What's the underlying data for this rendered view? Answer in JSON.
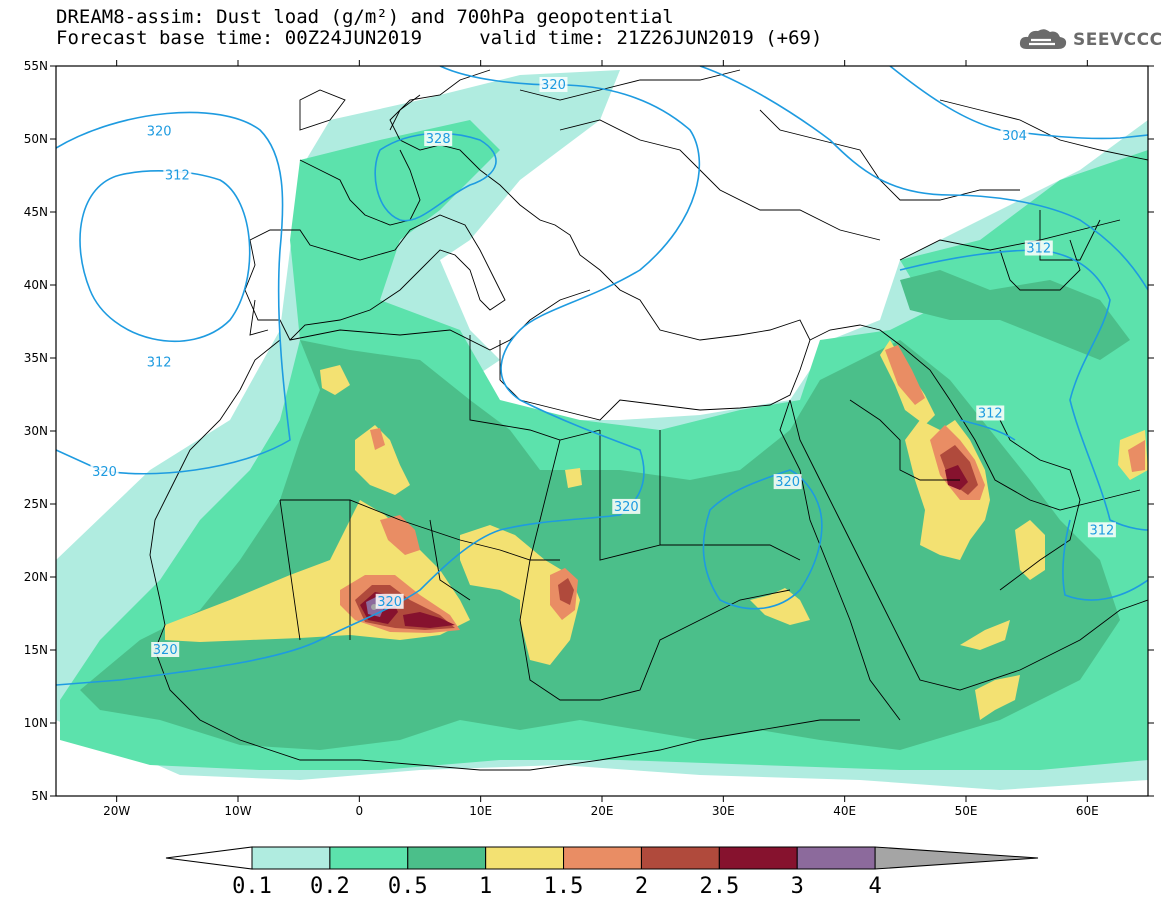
{
  "header": {
    "line1": "DREAM8-assim: Dust load (g/m²) and 700hPa geopotential",
    "line2": "Forecast base time: 00Z24JUN2019     valid time: 21Z26JUN2019 (+69)"
  },
  "logo": {
    "text": "SEEVCCC",
    "icon": "cloud-logo-icon"
  },
  "map": {
    "lat_range": [
      5,
      55
    ],
    "lon_range": [
      -25,
      65
    ],
    "lat_ticks": [
      {
        "v": 55,
        "label": "55N"
      },
      {
        "v": 50,
        "label": "50N"
      },
      {
        "v": 45,
        "label": "45N"
      },
      {
        "v": 40,
        "label": "40N"
      },
      {
        "v": 35,
        "label": "35N"
      },
      {
        "v": 30,
        "label": "30N"
      },
      {
        "v": 25,
        "label": "25N"
      },
      {
        "v": 20,
        "label": "20N"
      },
      {
        "v": 15,
        "label": "15N"
      },
      {
        "v": 10,
        "label": "10N"
      },
      {
        "v": 5,
        "label": "5N"
      }
    ],
    "lon_ticks": [
      {
        "v": -20,
        "label": "20W"
      },
      {
        "v": -10,
        "label": "10W"
      },
      {
        "v": 0,
        "label": "0"
      },
      {
        "v": 10,
        "label": "10E"
      },
      {
        "v": 20,
        "label": "20E"
      },
      {
        "v": 30,
        "label": "30E"
      },
      {
        "v": 40,
        "label": "40E"
      },
      {
        "v": 50,
        "label": "50E"
      },
      {
        "v": 60,
        "label": "60E"
      }
    ],
    "contour_color": "#1e9be0",
    "contour_labels": [
      {
        "text": "320",
        "lon": -16.5,
        "lat": 50.5
      },
      {
        "text": "312",
        "lon": -15,
        "lat": 47.5
      },
      {
        "text": "328",
        "lon": 6.5,
        "lat": 50.0
      },
      {
        "text": "320",
        "lon": 16,
        "lat": 53.7
      },
      {
        "text": "304",
        "lon": 54,
        "lat": 50.2
      },
      {
        "text": "312",
        "lon": -16.5,
        "lat": 34.7
      },
      {
        "text": "320",
        "lon": -21,
        "lat": 27.2
      },
      {
        "text": "312",
        "lon": 56,
        "lat": 42.5
      },
      {
        "text": "312",
        "lon": 52,
        "lat": 31.2
      },
      {
        "text": "320",
        "lon": 35.3,
        "lat": 26.5
      },
      {
        "text": "320",
        "lon": 22,
        "lat": 24.8
      },
      {
        "text": "312",
        "lon": 61.2,
        "lat": 23.2
      },
      {
        "text": "320",
        "lon": 2.5,
        "lat": 18.3
      },
      {
        "text": "320",
        "lon": -16,
        "lat": 15.0
      }
    ]
  },
  "colorbar": {
    "colors": [
      "#b0ece0",
      "#5ce2ac",
      "#4bbf8a",
      "#f3e172",
      "#e98d64",
      "#b04a3c",
      "#86122e",
      "#8c6a9c",
      "#a5a5a5"
    ],
    "left_color": "#ffffff",
    "labels": [
      "0.1",
      "0.2",
      "0.5",
      "1",
      "1.5",
      "2",
      "2.5",
      "3",
      "4"
    ]
  }
}
